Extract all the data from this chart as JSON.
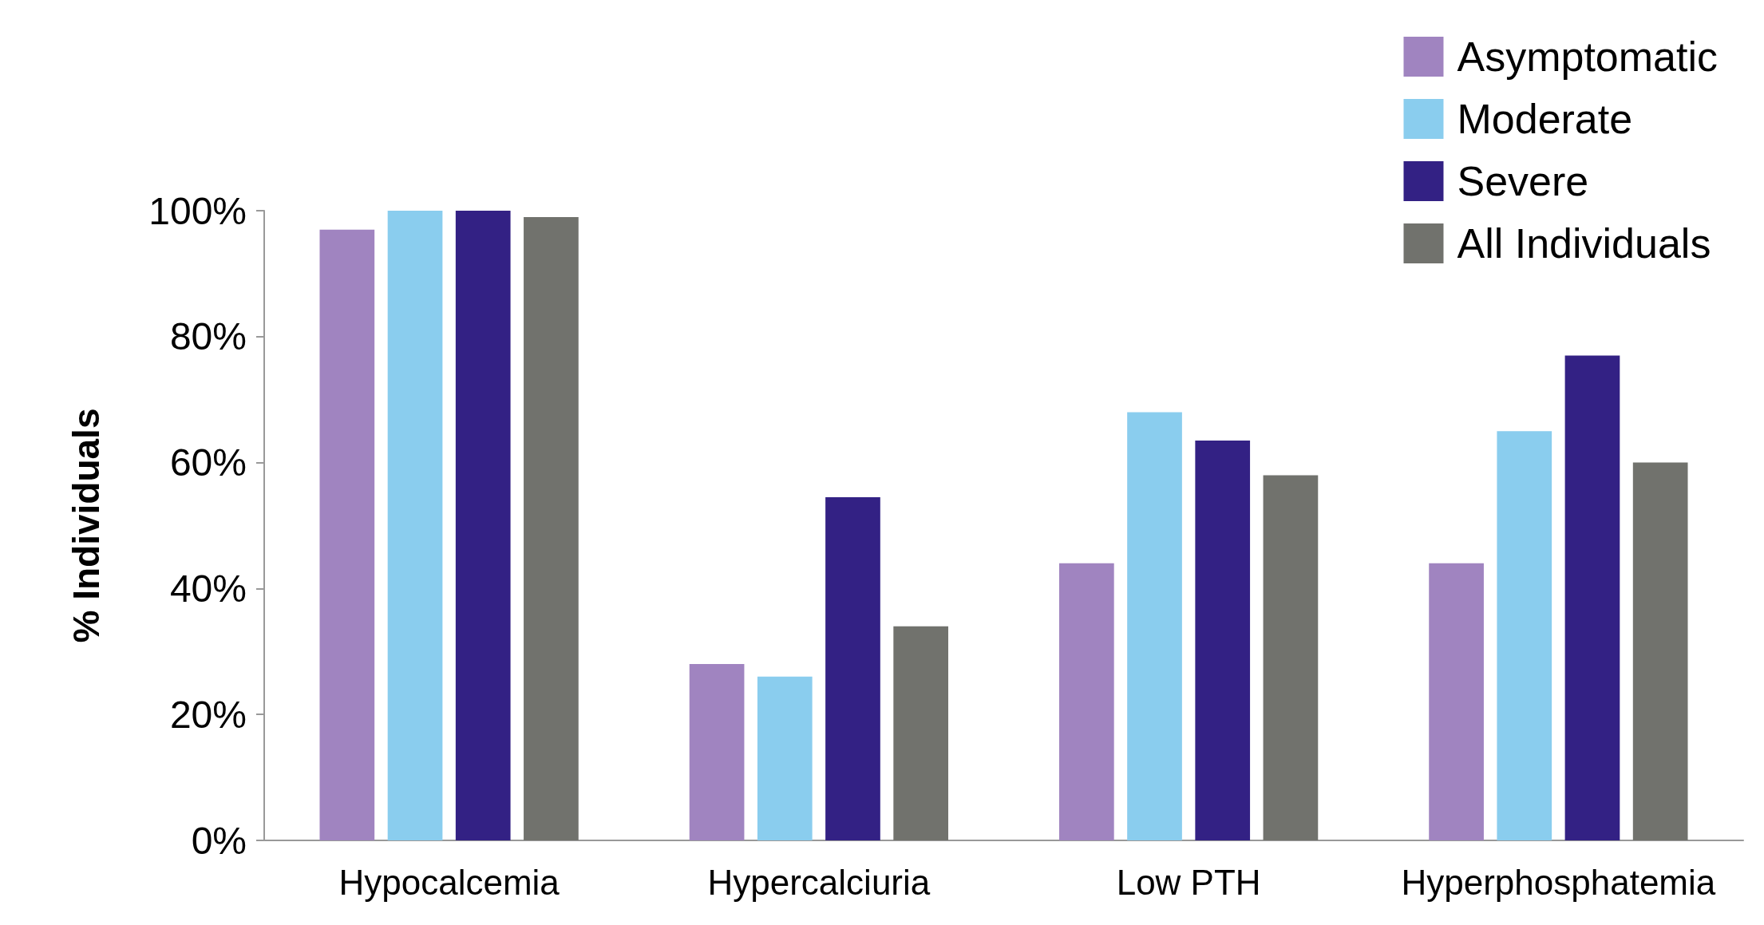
{
  "chart_data": {
    "type": "bar",
    "ylabel": "% Individuals",
    "categories": [
      "Hypocalcemia",
      "Hypercalciuria",
      "Low PTH",
      "Hyperphosphatemia"
    ],
    "series": [
      {
        "name": "Asymptomatic",
        "color": "#a084c0",
        "values": [
          97,
          28,
          44,
          44
        ]
      },
      {
        "name": "Moderate",
        "color": "#8acdee",
        "values": [
          100,
          26,
          68,
          65
        ]
      },
      {
        "name": "Severe",
        "color": "#332184",
        "values": [
          100,
          54.5,
          63.5,
          77
        ]
      },
      {
        "name": "All Individuals",
        "color": "#71726d",
        "values": [
          99,
          34,
          58,
          60
        ]
      }
    ],
    "ylim": [
      0,
      100
    ],
    "yticks": [
      {
        "value": 0,
        "label": "0%"
      },
      {
        "value": 20,
        "label": "20%"
      },
      {
        "value": 40,
        "label": "40%"
      },
      {
        "value": 60,
        "label": "60%"
      },
      {
        "value": 80,
        "label": "80%"
      },
      {
        "value": 100,
        "label": "100%"
      }
    ],
    "grid": false,
    "legend": "top right"
  }
}
